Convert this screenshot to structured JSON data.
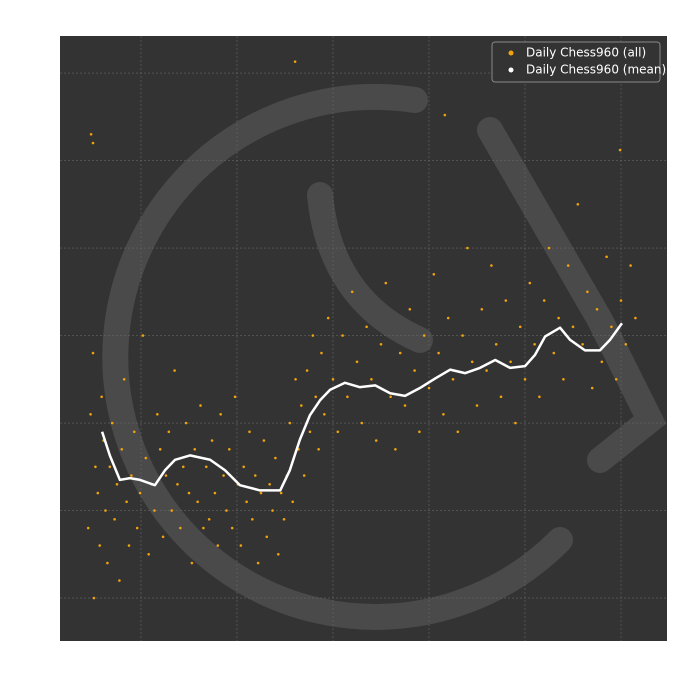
{
  "chart_data": {
    "type": "scatter",
    "xlim": [
      31.25,
      1295.8
    ],
    "ylim": [
      950.9,
      1642.3
    ],
    "xticks": [
      200,
      400,
      600,
      800,
      1000,
      1200
    ],
    "yticks": [
      1000,
      1100,
      1200,
      1300,
      1400,
      1500,
      1600
    ],
    "grid": true,
    "legend": "upper right",
    "series": [
      {
        "name": "Daily Chess960 (all)",
        "color": "#f0a30a",
        "kind": "points",
        "x": [
          90,
          95,
          100,
          102,
          105,
          110,
          114,
          118,
          122,
          126,
          130,
          135,
          140,
          145,
          150,
          155,
          160,
          165,
          170,
          175,
          180,
          186,
          192,
          198,
          204,
          210,
          216,
          222,
          228,
          234,
          240,
          246,
          252,
          258,
          264,
          270,
          276,
          282,
          288,
          294,
          300,
          306,
          312,
          318,
          324,
          330,
          336,
          342,
          348,
          354,
          360,
          366,
          372,
          378,
          384,
          390,
          396,
          402,
          408,
          414,
          420,
          426,
          432,
          438,
          444,
          450,
          456,
          462,
          468,
          474,
          480,
          486,
          492,
          498,
          504,
          510,
          516,
          522,
          528,
          534,
          540,
          546,
          552,
          558,
          564,
          570,
          576,
          582,
          590,
          600,
          610,
          620,
          630,
          640,
          650,
          660,
          670,
          680,
          690,
          700,
          710,
          720,
          730,
          740,
          750,
          760,
          770,
          780,
          790,
          800,
          810,
          820,
          830,
          840,
          850,
          860,
          870,
          880,
          890,
          900,
          910,
          920,
          930,
          940,
          950,
          960,
          970,
          980,
          990,
          1000,
          1010,
          1020,
          1030,
          1040,
          1050,
          1060,
          1070,
          1080,
          1090,
          1100,
          1110,
          1120,
          1130,
          1140,
          1150,
          1160,
          1170,
          1180,
          1190,
          1200,
          1210,
          1220,
          1230,
          96,
          100,
          521,
          833,
          1198
        ],
        "values": [
          1080,
          1210,
          1280,
          1000,
          1150,
          1120,
          1060,
          1230,
          1180,
          1100,
          1040,
          1150,
          1200,
          1090,
          1130,
          1020,
          1170,
          1250,
          1110,
          1060,
          1140,
          1190,
          1080,
          1120,
          1300,
          1160,
          1050,
          1130,
          1100,
          1210,
          1170,
          1070,
          1140,
          1190,
          1100,
          1260,
          1130,
          1080,
          1150,
          1200,
          1120,
          1040,
          1170,
          1110,
          1220,
          1080,
          1150,
          1090,
          1180,
          1120,
          1060,
          1210,
          1140,
          1100,
          1170,
          1080,
          1230,
          1130,
          1060,
          1150,
          1110,
          1190,
          1090,
          1140,
          1040,
          1120,
          1180,
          1070,
          1130,
          1100,
          1160,
          1050,
          1120,
          1090,
          1140,
          1200,
          1110,
          1250,
          1170,
          1220,
          1140,
          1260,
          1190,
          1300,
          1230,
          1170,
          1280,
          1210,
          1320,
          1250,
          1190,
          1300,
          1230,
          1350,
          1270,
          1200,
          1310,
          1250,
          1180,
          1290,
          1360,
          1230,
          1170,
          1280,
          1220,
          1330,
          1260,
          1190,
          1300,
          1240,
          1370,
          1280,
          1210,
          1320,
          1250,
          1190,
          1300,
          1400,
          1270,
          1220,
          1330,
          1260,
          1380,
          1290,
          1230,
          1340,
          1270,
          1200,
          1310,
          1250,
          1360,
          1290,
          1230,
          1340,
          1400,
          1280,
          1320,
          1250,
          1380,
          1310,
          1450,
          1290,
          1350,
          1240,
          1330,
          1270,
          1390,
          1310,
          1250,
          1340,
          1290,
          1380,
          1320,
          1530,
          1520,
          1613,
          1552,
          1512
        ]
      },
      {
        "name": "Daily Chess960 (mean)",
        "color": "#ffffff",
        "kind": "line",
        "x": [
          119,
          135,
          156,
          177,
          198,
          229,
          250,
          271,
          302,
          344,
          375,
          406,
          448,
          490,
          510,
          531,
          552,
          573,
          594,
          625,
          656,
          688,
          719,
          750,
          781,
          813,
          844,
          875,
          906,
          938,
          969,
          1000,
          1021,
          1042,
          1073,
          1094,
          1125,
          1156,
          1177,
          1202
        ],
        "values": [
          1190,
          1163,
          1135,
          1137,
          1135,
          1129,
          1146,
          1158,
          1163,
          1158,
          1146,
          1129,
          1123,
          1123,
          1146,
          1181,
          1209,
          1226,
          1238,
          1246,
          1241,
          1243,
          1234,
          1231,
          1240,
          1251,
          1261,
          1257,
          1263,
          1272,
          1263,
          1265,
          1278,
          1299,
          1309,
          1295,
          1283,
          1283,
          1295,
          1314
        ]
      }
    ]
  }
}
